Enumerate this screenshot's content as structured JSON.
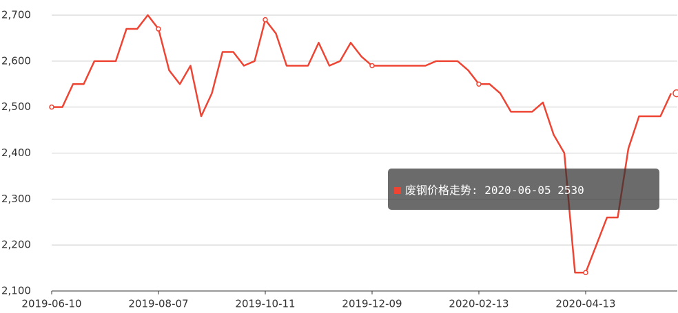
{
  "chart_data": {
    "type": "line",
    "categories": [
      "2019-06-10",
      null,
      null,
      null,
      null,
      null,
      null,
      null,
      null,
      null,
      "2019-08-07",
      null,
      null,
      null,
      null,
      null,
      null,
      null,
      null,
      null,
      "2019-10-11",
      null,
      null,
      null,
      null,
      null,
      null,
      null,
      null,
      null,
      "2019-12-09",
      null,
      null,
      null,
      null,
      null,
      null,
      null,
      null,
      null,
      "2020-02-13",
      null,
      null,
      null,
      null,
      null,
      null,
      null,
      null,
      null,
      "2020-04-13",
      null,
      null,
      null,
      null,
      null,
      null,
      null,
      "2020-06-05"
    ],
    "series": [
      {
        "name": "废钢价格走势",
        "color": "#ee4433",
        "values": [
          2500,
          2500,
          2550,
          2550,
          2600,
          2600,
          2600,
          2670,
          2670,
          2700,
          2670,
          2580,
          2550,
          2590,
          2480,
          2530,
          2620,
          2620,
          2590,
          2600,
          2690,
          2660,
          2590,
          2590,
          2590,
          2640,
          2590,
          2600,
          2640,
          2610,
          2590,
          2590,
          2590,
          2590,
          2590,
          2590,
          2600,
          2600,
          2600,
          2580,
          2550,
          2550,
          2530,
          2490,
          2490,
          2490,
          2510,
          2440,
          2400,
          2140,
          2140,
          2200,
          2260,
          2260,
          2410,
          2480,
          2480,
          2480,
          2530
        ]
      }
    ],
    "ylim": [
      2100,
      2700
    ],
    "yticks": [
      {
        "value": 2100,
        "label": "2,100"
      },
      {
        "value": 2200,
        "label": "2,200"
      },
      {
        "value": 2300,
        "label": "2,300"
      },
      {
        "value": 2400,
        "label": "2,400"
      },
      {
        "value": 2500,
        "label": "2,500"
      },
      {
        "value": 2600,
        "label": "2,600"
      },
      {
        "value": 2700,
        "label": "2,700"
      }
    ],
    "grid": true
  }
}
